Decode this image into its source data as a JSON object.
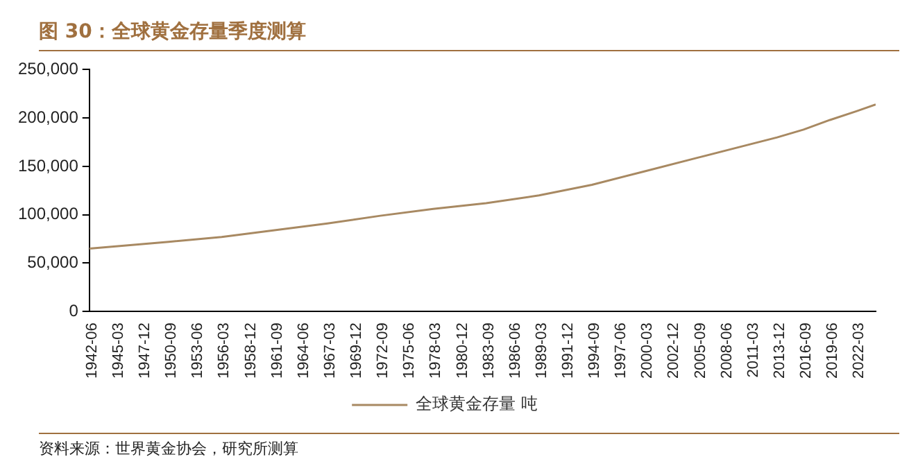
{
  "chart_data": {
    "type": "line",
    "title": "图 30：全球黄金存量季度测算",
    "annotations": [
      "资料来源：世界黄金协会，研究所测算"
    ],
    "x": [
      "1942-06",
      "1950-09",
      "1956-03",
      "1961-09",
      "1967-03",
      "1972-09",
      "1978-03",
      "1983-09",
      "1989-03",
      "1994-09",
      "2000-03",
      "2005-09",
      "2011-03",
      "2013-12",
      "2016-09",
      "2019-06",
      "2022-03",
      "2024-03"
    ],
    "series": [
      {
        "name": "全球黄金存量 吨",
        "color": "#a88962",
        "values": [
          65000,
          72000,
          77000,
          84000,
          91000,
          99000,
          106000,
          112000,
          120000,
          131000,
          145000,
          159000,
          173000,
          180000,
          188000,
          198000,
          207000,
          214000
        ]
      }
    ],
    "xlim": [
      "1942-06",
      "2024-03"
    ],
    "xticks": [
      {
        "value": "1942-06",
        "label": "1942-06"
      },
      {
        "value": "1945-03",
        "label": "1945-03"
      },
      {
        "value": "1947-12",
        "label": "1947-12"
      },
      {
        "value": "1950-09",
        "label": "1950-09"
      },
      {
        "value": "1953-06",
        "label": "1953-06"
      },
      {
        "value": "1956-03",
        "label": "1956-03"
      },
      {
        "value": "1958-12",
        "label": "1958-12"
      },
      {
        "value": "1961-09",
        "label": "1961-09"
      },
      {
        "value": "1964-06",
        "label": "1964-06"
      },
      {
        "value": "1967-03",
        "label": "1967-03"
      },
      {
        "value": "1969-12",
        "label": "1969-12"
      },
      {
        "value": "1972-09",
        "label": "1972-09"
      },
      {
        "value": "1975-06",
        "label": "1975-06"
      },
      {
        "value": "1978-03",
        "label": "1978-03"
      },
      {
        "value": "1980-12",
        "label": "1980-12"
      },
      {
        "value": "1983-09",
        "label": "1983-09"
      },
      {
        "value": "1986-06",
        "label": "1986-06"
      },
      {
        "value": "1989-03",
        "label": "1989-03"
      },
      {
        "value": "1991-12",
        "label": "1991-12"
      },
      {
        "value": "1994-09",
        "label": "1994-09"
      },
      {
        "value": "1997-06",
        "label": "1997-06"
      },
      {
        "value": "2000-03",
        "label": "2000-03"
      },
      {
        "value": "2002-12",
        "label": "2002-12"
      },
      {
        "value": "2005-09",
        "label": "2005-09"
      },
      {
        "value": "2008-06",
        "label": "2008-06"
      },
      {
        "value": "2011-03",
        "label": "2011-03"
      },
      {
        "value": "2013-12",
        "label": "2013-12"
      },
      {
        "value": "2016-09",
        "label": "2016-09"
      },
      {
        "value": "2019-06",
        "label": "2019-06"
      },
      {
        "value": "2022-03",
        "label": "2022-03"
      }
    ],
    "ylim": [
      0,
      250000
    ],
    "yticks": [
      0,
      {
        "value": 50000,
        "label": "50,000"
      },
      {
        "value": 100000,
        "label": "100,000"
      },
      {
        "value": 150000,
        "label": "150,000"
      },
      {
        "value": 200000,
        "label": "200,000"
      },
      {
        "value": 250000,
        "label": "250,000"
      }
    ],
    "grid": false,
    "legend": "bottom",
    "marker": "none",
    "line_style": "solid"
  }
}
